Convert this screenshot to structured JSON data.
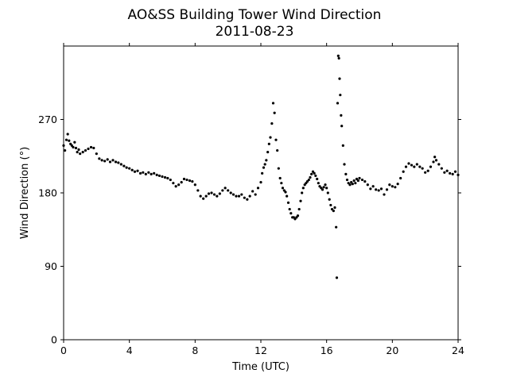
{
  "chart_data": {
    "type": "scatter",
    "title": "AO&SS Building Tower Wind Direction",
    "subtitle": "2011-08-23",
    "xlabel": "Time (UTC)",
    "ylabel": "Wind Direction (°)",
    "xlim": [
      0,
      24
    ],
    "ylim": [
      0,
      360
    ],
    "xticks": [
      0,
      4,
      8,
      12,
      16,
      20,
      24
    ],
    "yticks": [
      0,
      90,
      180,
      270
    ],
    "grid": false,
    "marker_color": "#000000",
    "series": [
      {
        "points": [
          [
            0.0,
            238
          ],
          [
            0.08,
            232
          ],
          [
            0.17,
            245
          ],
          [
            0.25,
            252
          ],
          [
            0.33,
            244
          ],
          [
            0.42,
            240
          ],
          [
            0.5,
            238
          ],
          [
            0.58,
            236
          ],
          [
            0.67,
            242
          ],
          [
            0.75,
            235
          ],
          [
            0.83,
            230
          ],
          [
            0.92,
            233
          ],
          [
            1.0,
            228
          ],
          [
            1.17,
            230
          ],
          [
            1.33,
            232
          ],
          [
            1.5,
            234
          ],
          [
            1.67,
            236
          ],
          [
            1.83,
            235
          ],
          [
            2.0,
            228
          ],
          [
            2.17,
            222
          ],
          [
            2.33,
            220
          ],
          [
            2.5,
            219
          ],
          [
            2.67,
            221
          ],
          [
            2.83,
            218
          ],
          [
            3.0,
            220
          ],
          [
            3.17,
            218
          ],
          [
            3.33,
            217
          ],
          [
            3.5,
            215
          ],
          [
            3.67,
            213
          ],
          [
            3.83,
            211
          ],
          [
            4.0,
            210
          ],
          [
            4.17,
            208
          ],
          [
            4.33,
            206
          ],
          [
            4.5,
            207
          ],
          [
            4.67,
            204
          ],
          [
            4.83,
            205
          ],
          [
            5.0,
            203
          ],
          [
            5.17,
            205
          ],
          [
            5.33,
            203
          ],
          [
            5.5,
            204
          ],
          [
            5.67,
            202
          ],
          [
            5.83,
            201
          ],
          [
            6.0,
            200
          ],
          [
            6.17,
            199
          ],
          [
            6.33,
            198
          ],
          [
            6.5,
            196
          ],
          [
            6.67,
            192
          ],
          [
            6.83,
            188
          ],
          [
            7.0,
            190
          ],
          [
            7.17,
            193
          ],
          [
            7.33,
            197
          ],
          [
            7.5,
            196
          ],
          [
            7.67,
            195
          ],
          [
            7.83,
            194
          ],
          [
            8.0,
            190
          ],
          [
            8.17,
            183
          ],
          [
            8.33,
            176
          ],
          [
            8.5,
            173
          ],
          [
            8.67,
            176
          ],
          [
            8.83,
            179
          ],
          [
            9.0,
            180
          ],
          [
            9.17,
            178
          ],
          [
            9.33,
            176
          ],
          [
            9.5,
            179
          ],
          [
            9.67,
            183
          ],
          [
            9.83,
            186
          ],
          [
            10.0,
            183
          ],
          [
            10.17,
            180
          ],
          [
            10.33,
            178
          ],
          [
            10.5,
            176
          ],
          [
            10.67,
            176
          ],
          [
            10.83,
            178
          ],
          [
            11.0,
            174
          ],
          [
            11.17,
            172
          ],
          [
            11.33,
            176
          ],
          [
            11.5,
            182
          ],
          [
            11.67,
            178
          ],
          [
            11.83,
            186
          ],
          [
            12.0,
            193
          ],
          [
            12.08,
            204
          ],
          [
            12.17,
            211
          ],
          [
            12.25,
            215
          ],
          [
            12.33,
            220
          ],
          [
            12.42,
            230
          ],
          [
            12.5,
            240
          ],
          [
            12.58,
            248
          ],
          [
            12.67,
            265
          ],
          [
            12.75,
            290
          ],
          [
            12.83,
            278
          ],
          [
            12.92,
            245
          ],
          [
            13.0,
            232
          ],
          [
            13.08,
            210
          ],
          [
            13.17,
            198
          ],
          [
            13.25,
            192
          ],
          [
            13.33,
            186
          ],
          [
            13.42,
            183
          ],
          [
            13.5,
            181
          ],
          [
            13.58,
            176
          ],
          [
            13.67,
            168
          ],
          [
            13.75,
            160
          ],
          [
            13.83,
            155
          ],
          [
            13.92,
            150
          ],
          [
            14.0,
            150
          ],
          [
            14.08,
            148
          ],
          [
            14.17,
            150
          ],
          [
            14.25,
            152
          ],
          [
            14.33,
            160
          ],
          [
            14.42,
            170
          ],
          [
            14.5,
            180
          ],
          [
            14.58,
            186
          ],
          [
            14.67,
            190
          ],
          [
            14.75,
            192
          ],
          [
            14.83,
            194
          ],
          [
            14.92,
            196
          ],
          [
            15.0,
            199
          ],
          [
            15.08,
            203
          ],
          [
            15.17,
            206
          ],
          [
            15.25,
            204
          ],
          [
            15.33,
            201
          ],
          [
            15.42,
            197
          ],
          [
            15.5,
            192
          ],
          [
            15.58,
            188
          ],
          [
            15.67,
            186
          ],
          [
            15.75,
            184
          ],
          [
            15.83,
            187
          ],
          [
            15.92,
            190
          ],
          [
            16.0,
            186
          ],
          [
            16.08,
            180
          ],
          [
            16.17,
            172
          ],
          [
            16.25,
            165
          ],
          [
            16.33,
            160
          ],
          [
            16.42,
            158
          ],
          [
            16.5,
            162
          ],
          [
            16.58,
            138
          ],
          [
            16.62,
            76
          ],
          [
            16.67,
            290
          ],
          [
            16.71,
            348
          ],
          [
            16.75,
            345
          ],
          [
            16.79,
            320
          ],
          [
            16.83,
            300
          ],
          [
            16.88,
            275
          ],
          [
            16.92,
            262
          ],
          [
            17.0,
            238
          ],
          [
            17.08,
            215
          ],
          [
            17.17,
            203
          ],
          [
            17.25,
            196
          ],
          [
            17.33,
            192
          ],
          [
            17.42,
            190
          ],
          [
            17.5,
            193
          ],
          [
            17.58,
            191
          ],
          [
            17.67,
            195
          ],
          [
            17.75,
            192
          ],
          [
            17.83,
            197
          ],
          [
            17.92,
            195
          ],
          [
            18.0,
            198
          ],
          [
            18.17,
            196
          ],
          [
            18.33,
            194
          ],
          [
            18.5,
            190
          ],
          [
            18.67,
            185
          ],
          [
            18.83,
            188
          ],
          [
            19.0,
            184
          ],
          [
            19.17,
            183
          ],
          [
            19.33,
            185
          ],
          [
            19.5,
            178
          ],
          [
            19.67,
            184
          ],
          [
            19.83,
            190
          ],
          [
            20.0,
            188
          ],
          [
            20.17,
            187
          ],
          [
            20.33,
            191
          ],
          [
            20.5,
            198
          ],
          [
            20.67,
            206
          ],
          [
            20.83,
            212
          ],
          [
            21.0,
            216
          ],
          [
            21.17,
            214
          ],
          [
            21.33,
            212
          ],
          [
            21.5,
            215
          ],
          [
            21.67,
            212
          ],
          [
            21.83,
            210
          ],
          [
            22.0,
            205
          ],
          [
            22.17,
            207
          ],
          [
            22.33,
            212
          ],
          [
            22.5,
            218
          ],
          [
            22.58,
            224
          ],
          [
            22.67,
            220
          ],
          [
            22.83,
            215
          ],
          [
            23.0,
            210
          ],
          [
            23.17,
            205
          ],
          [
            23.33,
            207
          ],
          [
            23.5,
            204
          ],
          [
            23.67,
            203
          ],
          [
            23.83,
            206
          ],
          [
            24.0,
            202
          ]
        ]
      }
    ]
  }
}
